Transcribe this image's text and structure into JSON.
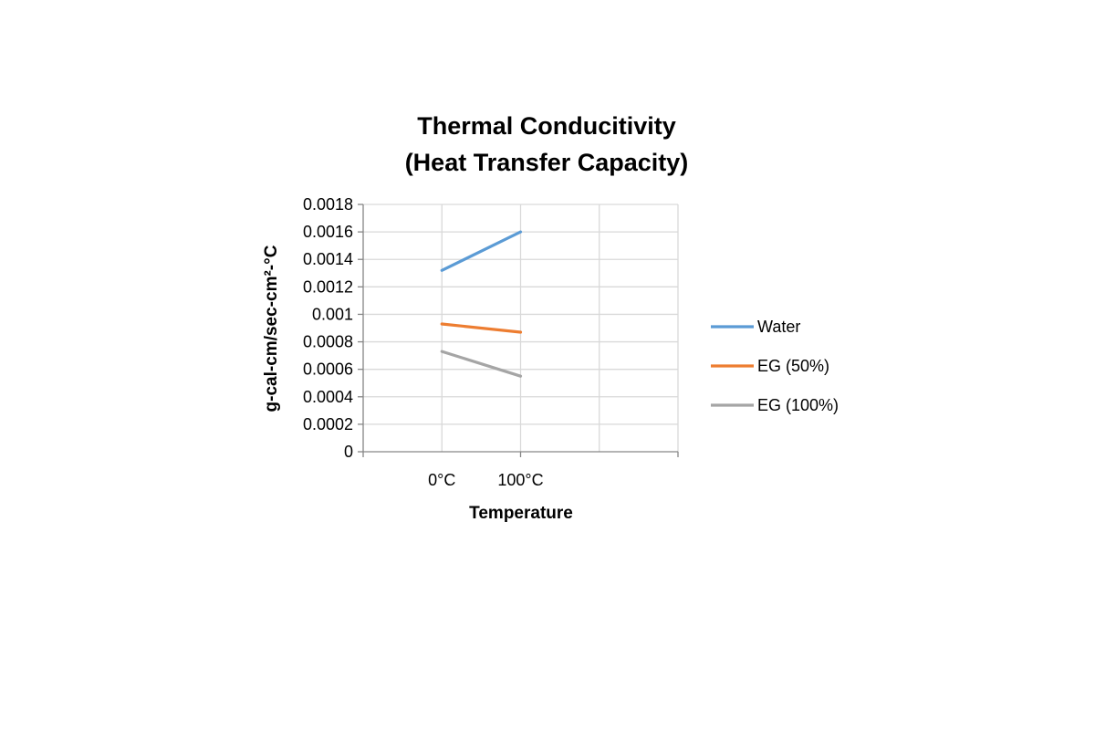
{
  "chart_data": {
    "type": "line",
    "title_lines": [
      "Thermal Conducitivity",
      "(Heat Transfer Capacity)"
    ],
    "xlabel": "Temperature",
    "ylabel": "g-cal-cm/sec-cm²-°C",
    "categories": [
      "0°C",
      "100°C"
    ],
    "y_ticks": [
      "0.0018",
      "0.0016",
      "0.0014",
      "0.0012",
      "0.001",
      "0.0008",
      "0.0006",
      "0.0004",
      "0.0002",
      "0"
    ],
    "ylim": [
      0,
      0.0018
    ],
    "grid": true,
    "legend_position": "right",
    "series": [
      {
        "name": "Water",
        "color": "#5b9bd5",
        "values": [
          0.00132,
          0.0016
        ]
      },
      {
        "name": "EG (50%)",
        "color": "#ed7d31",
        "values": [
          0.00093,
          0.00087
        ]
      },
      {
        "name": "EG (100%)",
        "color": "#a5a5a5",
        "values": [
          0.00073,
          0.00055
        ]
      }
    ]
  }
}
